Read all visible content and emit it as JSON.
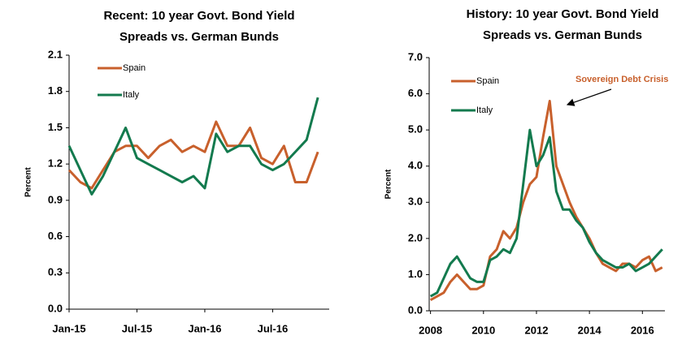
{
  "chart_data": [
    {
      "type": "line",
      "title": [
        "Recent: 10 year Govt. Bond Yield",
        "Spreads vs. German Bunds"
      ],
      "y_label": "Percent",
      "x": [
        "2015-01",
        "2015-02",
        "2015-03",
        "2015-04",
        "2015-05",
        "2015-06",
        "2015-07",
        "2015-08",
        "2015-09",
        "2015-10",
        "2015-11",
        "2015-12",
        "2016-01",
        "2016-02",
        "2016-03",
        "2016-04",
        "2016-05",
        "2016-06",
        "2016-07",
        "2016-08",
        "2016-09",
        "2016-10",
        "2016-11"
      ],
      "series": [
        {
          "name": "Spain",
          "color": "#c8602c",
          "values": [
            1.15,
            1.05,
            1.0,
            1.15,
            1.3,
            1.35,
            1.35,
            1.25,
            1.35,
            1.4,
            1.3,
            1.35,
            1.3,
            1.55,
            1.35,
            1.35,
            1.5,
            1.25,
            1.2,
            1.35,
            1.05,
            1.05,
            1.3
          ]
        },
        {
          "name": "Italy",
          "color": "#137a4e",
          "values": [
            1.35,
            1.15,
            0.95,
            1.1,
            1.3,
            1.5,
            1.25,
            1.2,
            1.15,
            1.1,
            1.05,
            1.1,
            1.0,
            1.45,
            1.3,
            1.35,
            1.35,
            1.2,
            1.15,
            1.2,
            1.3,
            1.4,
            1.75
          ]
        }
      ],
      "xlim": [
        "2015-01",
        "2016-12"
      ],
      "xticks": [
        {
          "value": "2015-01",
          "label": "Jan-15"
        },
        {
          "value": "2015-07",
          "label": "Jul-15"
        },
        {
          "value": "2016-01",
          "label": "Jan-16"
        },
        {
          "value": "2016-07",
          "label": "Jul-16"
        }
      ],
      "ylim": [
        0,
        2.1
      ],
      "yticks": [
        {
          "value": 0,
          "label": "0.0"
        },
        {
          "value": 0.3,
          "label": "0.3"
        },
        {
          "value": 0.6,
          "label": "0.6"
        },
        {
          "value": 0.9,
          "label": "0.9"
        },
        {
          "value": 1.2,
          "label": "1.2"
        },
        {
          "value": 1.5,
          "label": "1.5"
        },
        {
          "value": 1.8,
          "label": "1.8"
        },
        {
          "value": 2.1,
          "label": "2.1"
        }
      ]
    },
    {
      "type": "line",
      "title": [
        "History: 10 year Govt. Bond Yield",
        "Spreads  vs. German Bunds"
      ],
      "y_label": "Percent",
      "annotations": [
        {
          "text": "Sovereign Debt Crisis"
        }
      ],
      "x": [
        2008,
        2008.25,
        2008.5,
        2008.75,
        2009,
        2009.25,
        2009.5,
        2009.75,
        2010,
        2010.25,
        2010.5,
        2010.75,
        2011,
        2011.25,
        2011.5,
        2011.75,
        2012,
        2012.25,
        2012.5,
        2012.75,
        2013,
        2013.25,
        2013.5,
        2013.75,
        2014,
        2014.25,
        2014.5,
        2014.75,
        2015,
        2015.25,
        2015.5,
        2015.75,
        2016,
        2016.25,
        2016.5,
        2016.75
      ],
      "series": [
        {
          "name": "Spain",
          "color": "#c8602c",
          "values": [
            0.3,
            0.4,
            0.5,
            0.8,
            1.0,
            0.8,
            0.6,
            0.6,
            0.7,
            1.5,
            1.7,
            2.2,
            2.0,
            2.3,
            3.0,
            3.5,
            3.7,
            4.8,
            5.8,
            4.0,
            3.5,
            3.0,
            2.6,
            2.3,
            2.0,
            1.6,
            1.3,
            1.2,
            1.1,
            1.3,
            1.3,
            1.2,
            1.4,
            1.5,
            1.1,
            1.2
          ]
        },
        {
          "name": "Italy",
          "color": "#137a4e",
          "values": [
            0.4,
            0.5,
            0.9,
            1.3,
            1.5,
            1.2,
            0.9,
            0.8,
            0.8,
            1.4,
            1.5,
            1.7,
            1.6,
            2.0,
            3.5,
            5.0,
            4.0,
            4.3,
            4.8,
            3.3,
            2.8,
            2.8,
            2.5,
            2.3,
            1.9,
            1.6,
            1.4,
            1.3,
            1.2,
            1.2,
            1.3,
            1.1,
            1.2,
            1.3,
            1.5,
            1.7
          ]
        }
      ],
      "xlim": [
        2007.95,
        2016.85
      ],
      "xticks": [
        2008,
        2010,
        2012,
        2014,
        2016
      ],
      "ylim": [
        0,
        7
      ],
      "yticks": [
        {
          "value": 0,
          "label": "0.0"
        },
        {
          "value": 1,
          "label": "1.0"
        },
        {
          "value": 2,
          "label": "2.0"
        },
        {
          "value": 3,
          "label": "3.0"
        },
        {
          "value": 4,
          "label": "4.0"
        },
        {
          "value": 5,
          "label": "5.0"
        },
        {
          "value": 6,
          "label": "6.0"
        },
        {
          "value": 7,
          "label": "7.0"
        }
      ]
    }
  ]
}
